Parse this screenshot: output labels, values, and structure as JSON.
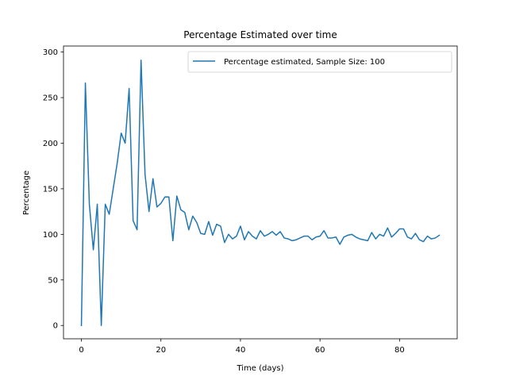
{
  "chart_data": {
    "type": "line",
    "title": "Percentage Estimated over time",
    "xlabel": "Time (days)",
    "ylabel": "Percentage",
    "xlim": [
      -4.5,
      94.5
    ],
    "ylim": [
      -14.6,
      306.6
    ],
    "xticks": [
      0,
      20,
      40,
      60,
      80
    ],
    "yticks": [
      0,
      50,
      100,
      150,
      200,
      250,
      300
    ],
    "grid": false,
    "legend_position": "upper right",
    "colors": {
      "series": "#1f77b4",
      "axes": "#000000",
      "background": "#ffffff"
    },
    "series": [
      {
        "name": "Percentage estimated, Sample Size: 100",
        "x": [
          0,
          1,
          2,
          3,
          4,
          5,
          6,
          7,
          8,
          9,
          10,
          11,
          12,
          13,
          14,
          15,
          16,
          17,
          18,
          19,
          20,
          21,
          22,
          23,
          24,
          25,
          26,
          27,
          28,
          29,
          30,
          31,
          32,
          33,
          34,
          35,
          36,
          37,
          38,
          39,
          40,
          41,
          42,
          43,
          44,
          45,
          46,
          47,
          48,
          49,
          50,
          51,
          52,
          53,
          54,
          55,
          56,
          57,
          58,
          59,
          60,
          61,
          62,
          63,
          64,
          65,
          66,
          67,
          68,
          69,
          70,
          71,
          72,
          73,
          74,
          75,
          76,
          77,
          78,
          79,
          80,
          81,
          82,
          83,
          84,
          85,
          86,
          87,
          88,
          89,
          90
        ],
        "y": [
          0,
          266,
          133,
          83,
          133,
          0,
          133,
          122,
          150,
          178,
          211,
          200,
          260,
          115,
          105,
          291,
          166,
          125,
          161,
          130,
          134,
          141,
          141,
          93,
          142,
          127,
          124,
          105,
          120,
          113,
          101,
          100,
          114,
          99,
          111,
          109,
          91,
          100,
          95,
          98,
          109,
          94,
          103,
          98,
          95,
          104,
          98,
          100,
          103,
          99,
          103,
          96,
          95,
          93,
          94,
          96,
          98,
          98,
          94,
          97,
          98,
          104,
          96,
          96,
          97,
          89,
          97,
          99,
          100,
          97,
          95,
          94,
          93,
          102,
          95,
          100,
          98,
          107,
          97,
          101,
          106,
          106,
          97,
          95,
          101,
          94,
          92,
          98,
          95,
          96,
          99
        ]
      }
    ]
  }
}
